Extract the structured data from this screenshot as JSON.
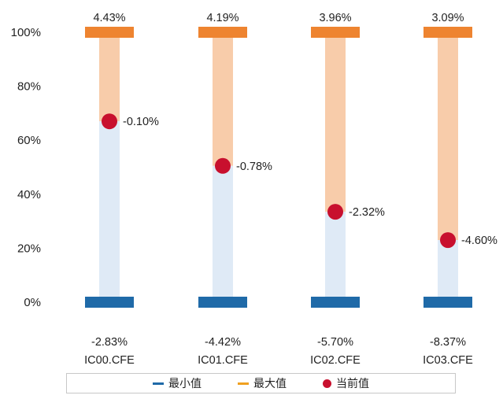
{
  "chart_data": {
    "type": "range-bar",
    "categories": [
      "IC00.CFE",
      "IC01.CFE",
      "IC02.CFE",
      "IC03.CFE"
    ],
    "min_labels": [
      "-2.83%",
      "-4.42%",
      "-5.70%",
      "-8.37%"
    ],
    "max_labels": [
      "4.43%",
      "4.19%",
      "3.96%",
      "3.09%"
    ],
    "current_labels": [
      "-0.10%",
      "-0.78%",
      "-2.32%",
      "-4.60%"
    ],
    "current_percentile": [
      67,
      50.5,
      33.5,
      23
    ],
    "yticks": [
      "0%",
      "20%",
      "40%",
      "60%",
      "80%",
      "100%"
    ],
    "ylim": [
      0,
      100
    ],
    "legend": [
      {
        "label": "最小值",
        "color": "#1f6aa8"
      },
      {
        "label": "最大值",
        "color": "#f0a020"
      },
      {
        "label": "当前值",
        "color": "#c8102e"
      }
    ],
    "colors": {
      "min_marker": "#1f6aa8",
      "max_marker": "#ee8430",
      "lower_fill": "#dfeaf6",
      "upper_fill": "#f8ccaa",
      "current_point": "#c8102e"
    }
  }
}
